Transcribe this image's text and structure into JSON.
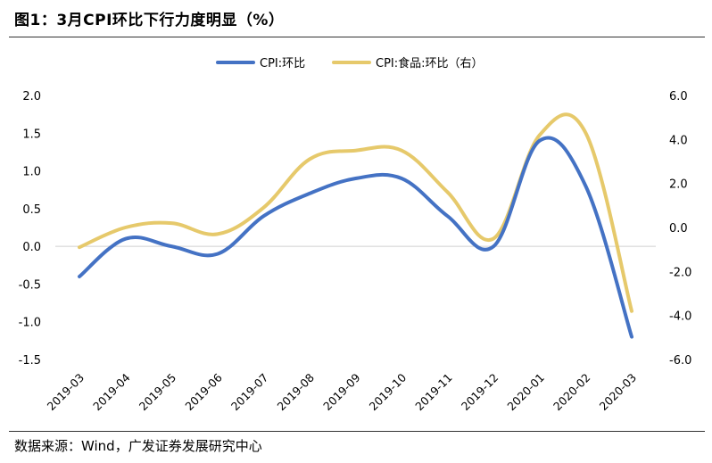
{
  "figure": {
    "title": "图1：3月CPI环比下行力度明显（%）",
    "source": "数据来源：Wind，广发证券发展研究中心"
  },
  "chart_data": {
    "type": "line",
    "categories": [
      "2019-03",
      "2019-04",
      "2019-05",
      "2019-06",
      "2019-07",
      "2019-08",
      "2019-09",
      "2019-10",
      "2019-11",
      "2019-12",
      "2020-01",
      "2020-02",
      "2020-03"
    ],
    "series": [
      {
        "name": "CPI:环比",
        "axis": "left",
        "color": "#4472C4",
        "values": [
          -0.4,
          0.1,
          0.0,
          -0.1,
          0.4,
          0.7,
          0.9,
          0.9,
          0.4,
          0.0,
          1.4,
          0.8,
          -1.2
        ]
      },
      {
        "name": "CPI:食品:环比（右）",
        "axis": "right",
        "color": "#E6C96B",
        "values": [
          -0.9,
          0.0,
          0.2,
          -0.3,
          0.9,
          3.1,
          3.5,
          3.5,
          1.6,
          -0.5,
          4.2,
          4.3,
          -3.8
        ]
      }
    ],
    "y_left": {
      "ylim": [
        -1.5,
        2.0
      ],
      "ticks": [
        "2.0",
        "1.5",
        "1.0",
        "0.5",
        "0.0",
        "-0.5",
        "-1.0",
        "-1.5"
      ]
    },
    "y_right": {
      "ylim": [
        -6.0,
        6.0
      ],
      "ticks": [
        "6.0",
        "4.0",
        "2.0",
        "0.0",
        "-2.0",
        "-4.0",
        "-6.0"
      ]
    },
    "legend": "top-center",
    "grid": false
  }
}
